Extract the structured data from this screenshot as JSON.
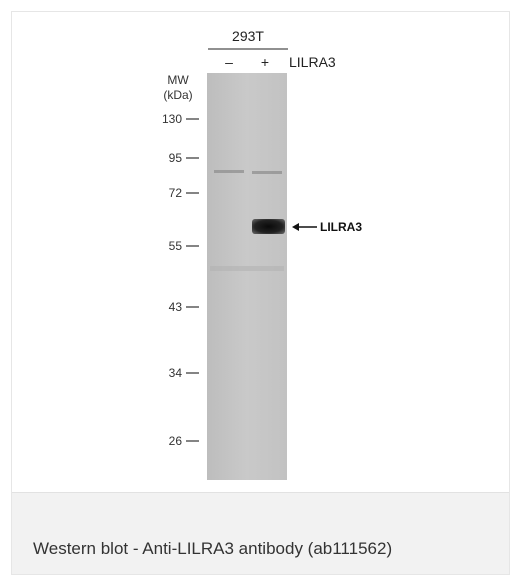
{
  "blot": {
    "cell_line": "293T",
    "lane_labels": [
      "–",
      "+"
    ],
    "treatment_label": "LILRA3",
    "mw_title": [
      "MW",
      "(kDa)"
    ],
    "mw_markers": [
      "130",
      "95",
      "72",
      "55",
      "43",
      "34",
      "26"
    ],
    "band_annotation": "LILRA3"
  },
  "caption": "Western blot - Anti-LILRA3 antibody (ab111562)",
  "colors": {
    "membrane": "#c6c6c6",
    "band": "#111111",
    "caption_background": "#f2f2f2",
    "text": "#333333"
  }
}
